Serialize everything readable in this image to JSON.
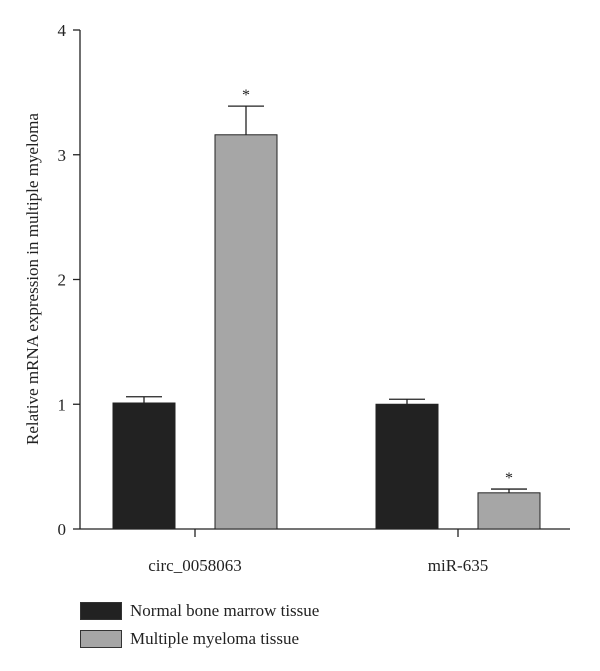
{
  "chart_data": {
    "type": "bar",
    "ylabel": "Relative mRNA expression in multiple myeloma",
    "ylim": [
      0,
      4
    ],
    "yticks": [
      "0",
      "1",
      "2",
      "3",
      "4"
    ],
    "categories": [
      "circ_0058063",
      "miR-635"
    ],
    "series": [
      {
        "name": "Normal bone marrow tissue",
        "values": [
          1.01,
          1.0
        ],
        "errors": [
          0.05,
          0.04
        ],
        "significance": [
          "",
          ""
        ],
        "color": "#222222"
      },
      {
        "name": "Multiple myeloma tissue",
        "values": [
          3.16,
          0.29
        ],
        "errors": [
          0.23,
          0.03
        ],
        "significance": [
          "*",
          "*"
        ],
        "color": "#a6a6a6"
      }
    ],
    "grid": false,
    "legend_position": "bottom"
  }
}
